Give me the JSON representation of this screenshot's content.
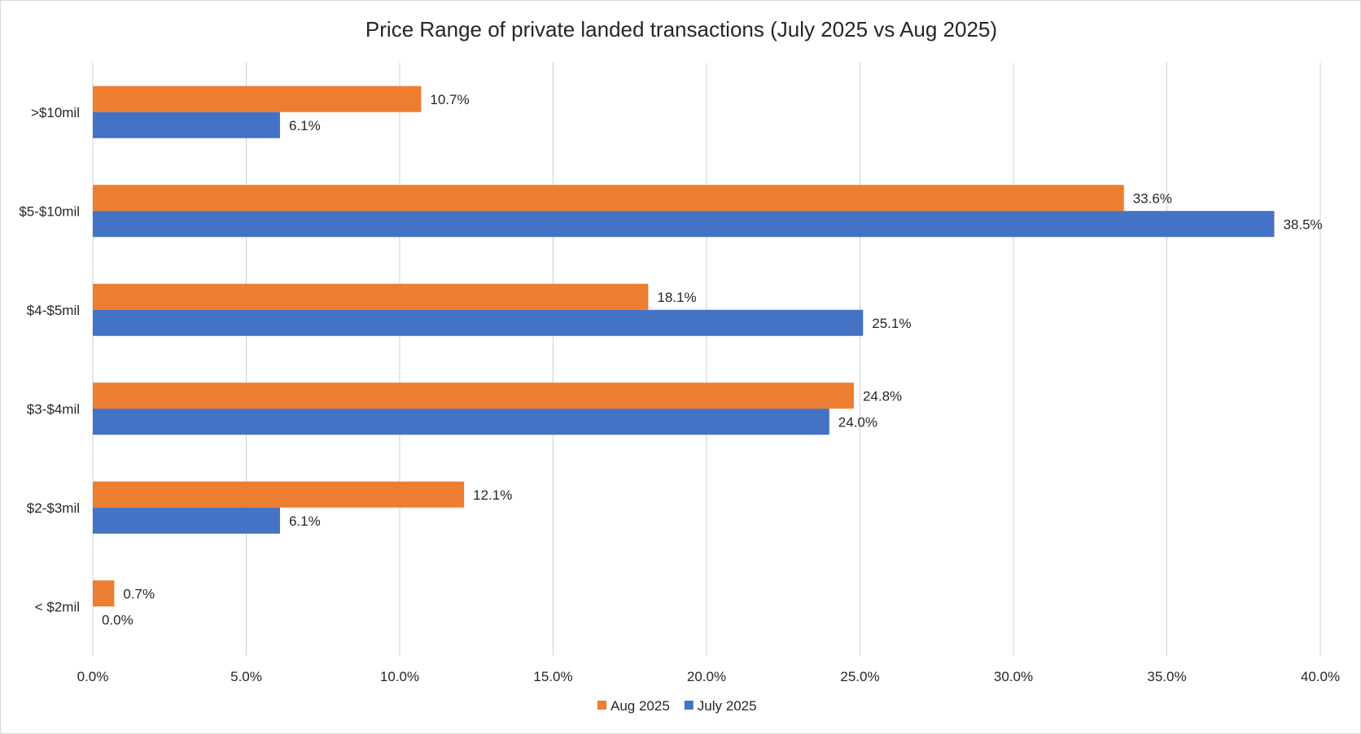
{
  "chart_data": {
    "type": "bar",
    "orientation": "horizontal",
    "title": "Price Range of private landed transactions (July 2025 vs Aug 2025)",
    "xlabel": "",
    "ylabel": "",
    "categories": [
      ">$10mil",
      "$5-$10mil",
      "$4-$5mil",
      "$3-$4mil",
      "$2-$3mil",
      "< $2mil"
    ],
    "series": [
      {
        "name": "Aug 2025",
        "color": "#ED7D31",
        "values": [
          10.7,
          33.6,
          18.1,
          24.8,
          12.1,
          0.7
        ],
        "labels": [
          "10.7%",
          "33.6%",
          "18.1%",
          "24.8%",
          "12.1%",
          "0.7%"
        ]
      },
      {
        "name": "July 2025",
        "color": "#4472C4",
        "values": [
          6.1,
          38.5,
          25.1,
          24.0,
          6.1,
          0.0
        ],
        "labels": [
          "6.1%",
          "38.5%",
          "25.1%",
          "24.0%",
          "6.1%",
          "0.0%"
        ]
      }
    ],
    "xlim": [
      0,
      40
    ],
    "xticks": [
      0,
      5,
      10,
      15,
      20,
      25,
      30,
      35,
      40
    ],
    "xtick_labels": [
      "0.0%",
      "5.0%",
      "10.0%",
      "15.0%",
      "20.0%",
      "25.0%",
      "30.0%",
      "35.0%",
      "40.0%"
    ],
    "grid": true,
    "legend_position": "bottom"
  }
}
